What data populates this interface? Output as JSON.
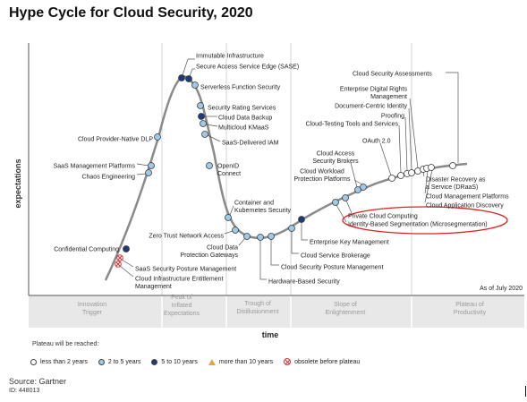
{
  "page": {
    "title": "Hype Cycle for Cloud Security, 2020"
  },
  "chart_data": {
    "type": "hype_cycle",
    "title": "Hype Cycle for Cloud Security, 2020",
    "xlabel": "time",
    "ylabel": "expectations",
    "as_of": "As of July 2020",
    "phases": [
      {
        "label": "Innovation\nTrigger"
      },
      {
        "label": "Peak of\nInflated\nExpectations"
      },
      {
        "label": "Trough of\nDisillusionment"
      },
      {
        "label": "Slope of\nEnlightenment"
      },
      {
        "label": "Plateau of\nProductivity"
      }
    ],
    "plateau_legend": {
      "title": "Plateau will be reached:",
      "items": [
        {
          "key": "lt2",
          "label": "less than 2 years",
          "color": "#ffffff"
        },
        {
          "key": "2to5",
          "label": "2 to 5 years",
          "color": "#9ec9e8"
        },
        {
          "key": "5to10",
          "label": "5 to 10 years",
          "color": "#1f3a7a"
        },
        {
          "key": "gt10",
          "label": "more than 10 years",
          "color": "#e8a33a"
        },
        {
          "key": "obsolete",
          "label": "obsolete before plateau",
          "color": "#d33333"
        }
      ]
    },
    "highlight": "Identity-Based Segmentation (Microsegmentation)",
    "technologies": [
      {
        "name": "Immutable Infrastructure",
        "phase": "Peak of Inflated Expectations",
        "plateau": "5to10"
      },
      {
        "name": "Secure Access Service Edge (SASE)",
        "phase": "Peak of Inflated Expectations",
        "plateau": "5to10"
      },
      {
        "name": "Serverless Function Security",
        "phase": "Peak of Inflated Expectations",
        "plateau": "2to5"
      },
      {
        "name": "Security Rating Services",
        "phase": "Peak of Inflated Expectations",
        "plateau": "2to5"
      },
      {
        "name": "Cloud Data Backup",
        "phase": "Peak of Inflated Expectations",
        "plateau": "5to10"
      },
      {
        "name": "Multicloud KMaaS",
        "phase": "Peak of Inflated Expectations",
        "plateau": "2to5"
      },
      {
        "name": "SaaS-Delivered IAM",
        "phase": "Peak of Inflated Expectations",
        "plateau": "2to5"
      },
      {
        "name": "OpenID Connect",
        "phase": "Trough of Disillusionment",
        "plateau": "2to5"
      },
      {
        "name": "Container and Kubernetes Security",
        "phase": "Trough of Disillusionment",
        "plateau": "2to5"
      },
      {
        "name": "Zero Trust Network Access",
        "phase": "Trough of Disillusionment",
        "plateau": "2to5"
      },
      {
        "name": "Cloud Data Protection Gateways",
        "phase": "Trough of Disillusionment",
        "plateau": "2to5"
      },
      {
        "name": "Hardware-Based Security",
        "phase": "Trough of Disillusionment",
        "plateau": "2to5"
      },
      {
        "name": "Cloud Security Posture Management",
        "phase": "Trough of Disillusionment",
        "plateau": "2to5"
      },
      {
        "name": "Cloud Service Brokerage",
        "phase": "Trough of Disillusionment",
        "plateau": "2to5"
      },
      {
        "name": "Enterprise Key Management",
        "phase": "Trough of Disillusionment",
        "plateau": "5to10"
      },
      {
        "name": "Cloud Provider-Native DLP",
        "phase": "Innovation Trigger",
        "plateau": "2to5"
      },
      {
        "name": "SaaS Management Platforms",
        "phase": "Innovation Trigger",
        "plateau": "2to5"
      },
      {
        "name": "Chaos Engineering",
        "phase": "Innovation Trigger",
        "plateau": "2to5"
      },
      {
        "name": "Confidential Computing",
        "phase": "Innovation Trigger",
        "plateau": "5to10"
      },
      {
        "name": "SaaS Security Posture Management",
        "phase": "Innovation Trigger",
        "plateau": "obsolete"
      },
      {
        "name": "Cloud Infrastructure Entitlement Management",
        "phase": "Innovation Trigger",
        "plateau": "obsolete"
      },
      {
        "name": "Identity-Based Segmentation (Microsegmentation)",
        "phase": "Slope of Enlightenment",
        "plateau": "2to5"
      },
      {
        "name": "Private Cloud Computing",
        "phase": "Slope of Enlightenment",
        "plateau": "2to5"
      },
      {
        "name": "Cloud Access Security Brokers",
        "phase": "Slope of Enlightenment",
        "plateau": "2to5"
      },
      {
        "name": "Cloud Workload Protection Platforms",
        "phase": "Slope of Enlightenment",
        "plateau": "2to5"
      },
      {
        "name": "OAuth 2.0",
        "phase": "Slope of Enlightenment",
        "plateau": "lt2"
      },
      {
        "name": "Cloud-Testing Tools and Services",
        "phase": "Slope of Enlightenment",
        "plateau": "lt2"
      },
      {
        "name": "Proofing",
        "phase": "Slope of Enlightenment",
        "plateau": "lt2"
      },
      {
        "name": "Document-Centric Identity",
        "phase": "Slope of Enlightenment",
        "plateau": "lt2"
      },
      {
        "name": "Enterprise Digital Rights Management",
        "phase": "Slope of Enlightenment",
        "plateau": "lt2"
      },
      {
        "name": "Disaster Recovery as a Service (DRaaS)",
        "phase": "Slope of Enlightenment",
        "plateau": "lt2"
      },
      {
        "name": "Cloud Management Platforms",
        "phase": "Slope of Enlightenment",
        "plateau": "lt2"
      },
      {
        "name": "Cloud Application Discovery",
        "phase": "Slope of Enlightenment",
        "plateau": "lt2"
      },
      {
        "name": "Cloud Security Assessments",
        "phase": "Slope of Enlightenment",
        "plateau": "lt2"
      }
    ]
  },
  "footer": {
    "source": "Source: Gartner",
    "doc_id": "ID: 448013"
  }
}
